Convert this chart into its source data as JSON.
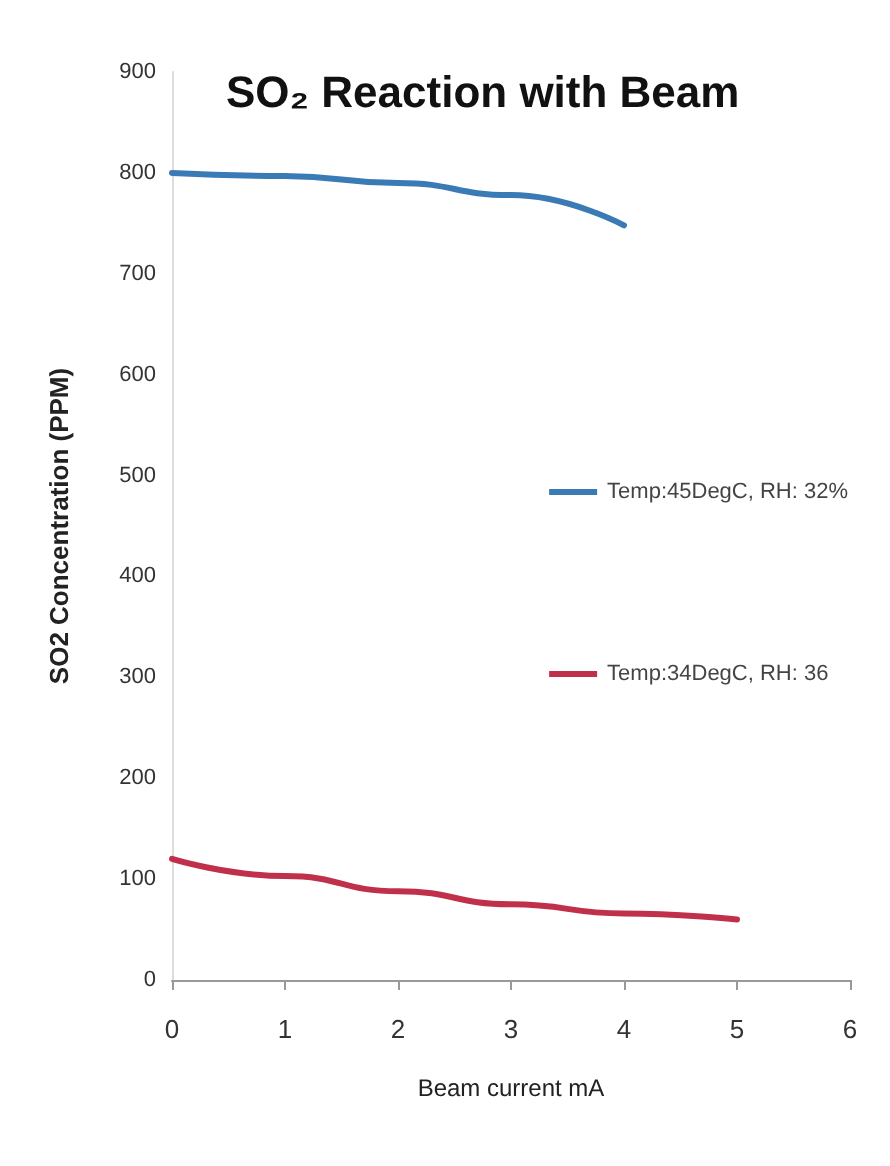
{
  "chart_data": {
    "type": "line",
    "title": "SO₂ Reaction with Beam",
    "xlabel": "Beam current mA",
    "ylabel": "SO2 Concentration (PPM)",
    "xlim": [
      0,
      6
    ],
    "xticks": [
      0,
      1,
      2,
      3,
      4,
      5,
      6
    ],
    "ylim": [
      0,
      900
    ],
    "yticks": [
      0,
      100,
      200,
      300,
      400,
      500,
      600,
      700,
      800,
      900
    ],
    "series": [
      {
        "name": "Temp:45DegC, RH: 32%",
        "color": "#3a7ab5",
        "x": [
          0,
          1,
          2,
          3,
          4
        ],
        "values": [
          800,
          797,
          790,
          778,
          748
        ]
      },
      {
        "name": "Temp:34DegC, RH: 36",
        "color": "#c0304a",
        "x": [
          0,
          1,
          2,
          3,
          4,
          5
        ],
        "values": [
          120,
          103,
          88,
          75,
          66,
          60
        ]
      }
    ],
    "grid": false,
    "legend": "right",
    "marker": "none",
    "line_style": "solid"
  }
}
